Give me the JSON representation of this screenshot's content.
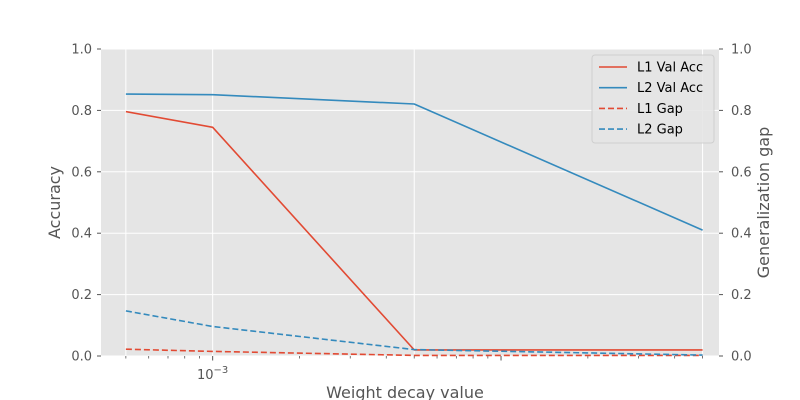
{
  "chart_data": {
    "type": "line",
    "title": "",
    "xlabel": "Weight decay value",
    "ylabel": "Accuracy",
    "y2label": "Generalization gap",
    "x_scale": "log",
    "x_tick_label": {
      "base": "10",
      "exponent": "−3"
    },
    "x": [
      0.0005,
      0.001,
      0.005,
      0.05
    ],
    "ylim": [
      0,
      1
    ],
    "y2lim": [
      0,
      1
    ],
    "y_ticks": [
      "0.0",
      "0.2",
      "0.4",
      "0.6",
      "0.8",
      "1.0"
    ],
    "y2_ticks": [
      "0.0",
      "0.2",
      "0.4",
      "0.6",
      "0.8",
      "1.0"
    ],
    "grid": true,
    "legend_position": "upper right",
    "series": [
      {
        "name": "L1 Val Acc",
        "axis": "left",
        "style": "solid",
        "color": "#E24A33",
        "values": [
          0.796,
          0.745,
          0.02,
          0.02
        ]
      },
      {
        "name": "L2 Val Acc",
        "axis": "left",
        "style": "solid",
        "color": "#348ABD",
        "values": [
          0.853,
          0.851,
          0.821,
          0.41
        ]
      },
      {
        "name": "L1 Gap",
        "axis": "right",
        "style": "dashed",
        "color": "#E24A33",
        "values": [
          0.022,
          0.015,
          0.002,
          0.002
        ]
      },
      {
        "name": "L2 Gap",
        "axis": "right",
        "style": "dashed",
        "color": "#348ABD",
        "values": [
          0.147,
          0.096,
          0.021,
          0.003
        ]
      }
    ]
  }
}
